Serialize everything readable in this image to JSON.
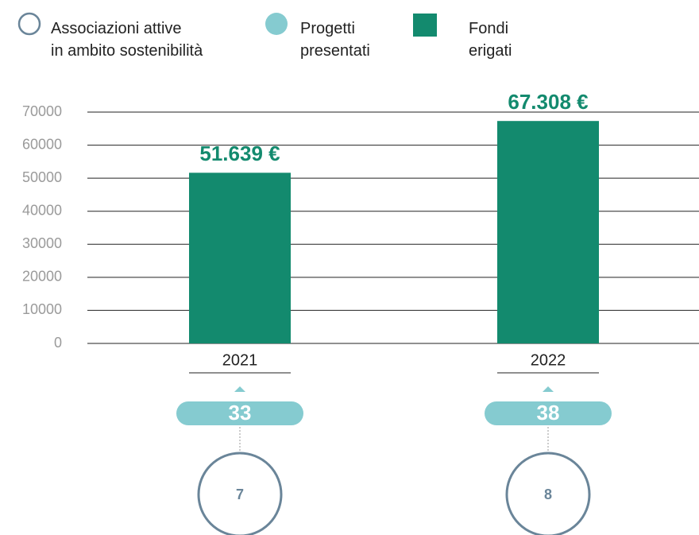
{
  "chart_data": {
    "type": "bar",
    "categories": [
      "2021",
      "2022"
    ],
    "series": [
      {
        "name": "Associazioni attive\nin ambito sostenibilità",
        "color": "#6a8599",
        "values": [
          7,
          8
        ]
      },
      {
        "name": "Progetti\npresentati",
        "color": "#85cbd0",
        "values": [
          33,
          38
        ]
      },
      {
        "name": "Fondi\nerigati",
        "color": "#138a6e",
        "values": [
          51639,
          67308
        ],
        "value_labels": [
          "51.639 €",
          "67.308 €"
        ]
      }
    ],
    "ylim": [
      0,
      70000
    ],
    "yticks": [
      0,
      10000,
      20000,
      30000,
      40000,
      50000,
      60000,
      70000
    ],
    "grid": true
  }
}
